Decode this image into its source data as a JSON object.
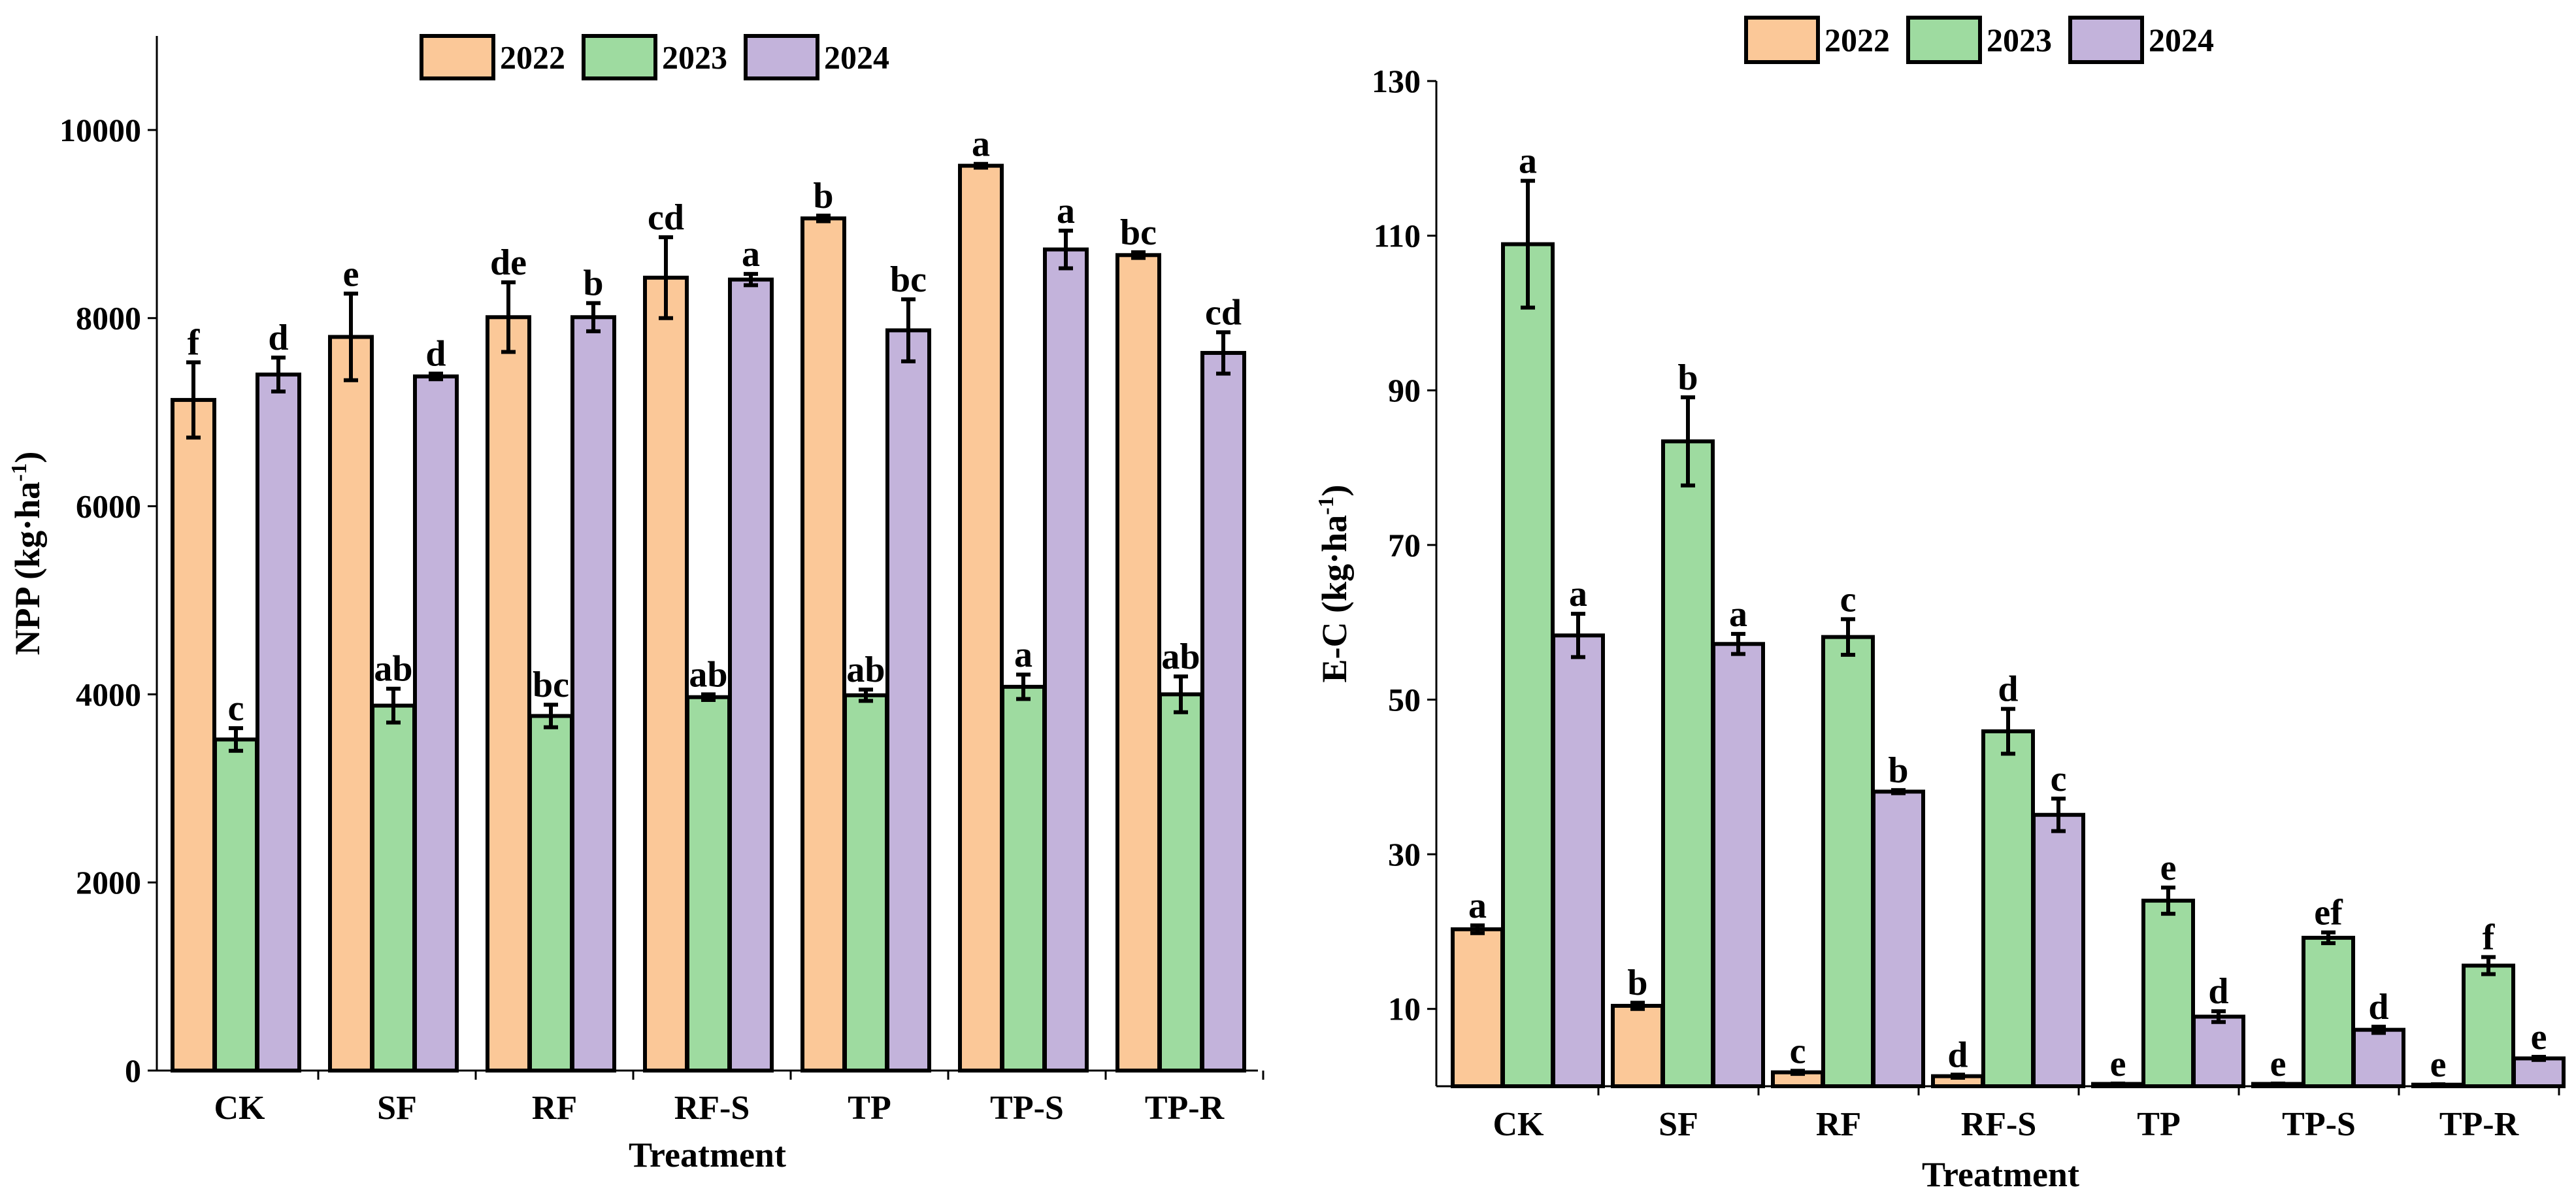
{
  "colors": {
    "2022": "#FBC898",
    "2023": "#9EDBA0",
    "2024": "#C3B3DB",
    "axis": "#000000"
  },
  "chart_data": [
    {
      "type": "bar",
      "ylabel_main": "NPP (kg·ha",
      "ylabel_sup": "-1",
      "ylabel_close": ")",
      "xlabel": "Treatment",
      "ylim": [
        0,
        11000
      ],
      "yticks": [
        0,
        2000,
        4000,
        6000,
        8000,
        10000
      ],
      "ytick_labels": [
        "0",
        "2000",
        "4000",
        "6000",
        "8000",
        "10000"
      ],
      "categories": [
        "CK",
        "SF",
        "RF",
        "RF-S",
        "TP",
        "TP-S",
        "TP-R"
      ],
      "series": [
        {
          "name": "2022",
          "values": [
            7130,
            7800,
            8010,
            8430,
            9060,
            9620,
            8670
          ],
          "errors": [
            400,
            460,
            370,
            430,
            30,
            20,
            30
          ],
          "letters": [
            "f",
            "e",
            "de",
            "cd",
            "b",
            "a",
            "bc"
          ]
        },
        {
          "name": "2023",
          "values": [
            3520,
            3880,
            3770,
            3970,
            3990,
            4080,
            4000
          ],
          "errors": [
            120,
            180,
            120,
            30,
            60,
            130,
            190
          ],
          "letters": [
            "c",
            "ab",
            "bc",
            "ab",
            "ab",
            "a",
            "ab"
          ]
        },
        {
          "name": "2024",
          "values": [
            7400,
            7380,
            8010,
            8410,
            7870,
            8730,
            7630
          ],
          "errors": [
            180,
            30,
            150,
            60,
            330,
            200,
            220
          ],
          "letters": [
            "d",
            "d",
            "b",
            "a",
            "bc",
            "a",
            "cd"
          ]
        }
      ]
    },
    {
      "type": "bar",
      "ylabel_main": "E-C (kg·ha",
      "ylabel_sup": "-1",
      "ylabel_close": ")",
      "xlabel": "Treatment",
      "ylim": [
        0,
        130
      ],
      "yticks": [
        10,
        30,
        50,
        70,
        90,
        110,
        130
      ],
      "ytick_labels": [
        "10",
        "30",
        "50",
        "70",
        "90",
        "110",
        "130"
      ],
      "categories": [
        "CK",
        "SF",
        "RF",
        "RF-S",
        "TP",
        "TP-S",
        "TP-R"
      ],
      "series": [
        {
          "name": "2022",
          "values": [
            20.3,
            10.4,
            1.8,
            1.3,
            0.3,
            0.3,
            0.2
          ],
          "errors": [
            0.5,
            0.4,
            0.2,
            0.2,
            0.05,
            0.05,
            0.05
          ],
          "letters": [
            "a",
            "b",
            "c",
            "d",
            "e",
            "e",
            "e"
          ]
        },
        {
          "name": "2023",
          "values": [
            108.9,
            83.4,
            58.1,
            45.9,
            24.0,
            19.2,
            15.6
          ],
          "errors": [
            8.2,
            5.7,
            2.3,
            2.9,
            1.7,
            0.7,
            1.1
          ],
          "letters": [
            "a",
            "b",
            "c",
            "d",
            "e",
            "ef",
            "f"
          ]
        },
        {
          "name": "2024",
          "values": [
            58.3,
            57.2,
            38.1,
            35.1,
            9.0,
            7.3,
            3.6
          ],
          "errors": [
            2.8,
            1.3,
            0.2,
            2.1,
            0.7,
            0.4,
            0.2
          ],
          "letters": [
            "a",
            "a",
            "b",
            "c",
            "d",
            "d",
            "e"
          ]
        }
      ]
    }
  ]
}
